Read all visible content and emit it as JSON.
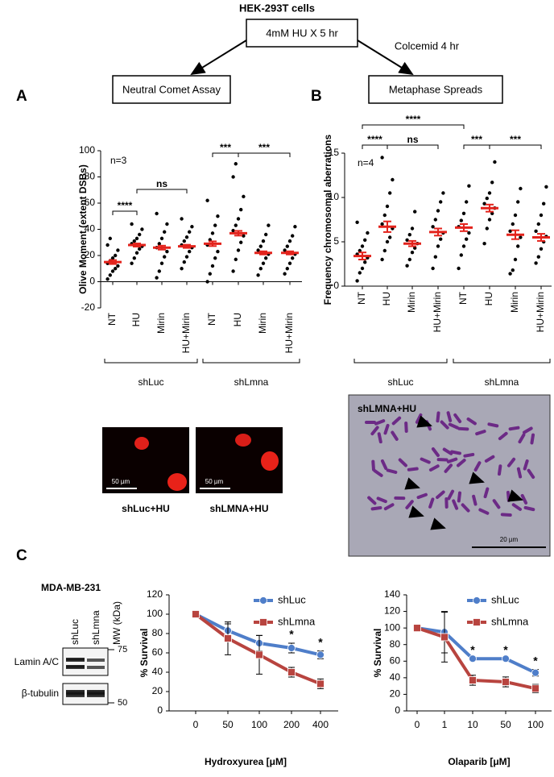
{
  "diagram": {
    "cells": "HEK-293T cells",
    "treatment": "4mM HU X 5 hr",
    "colcemid": "Colcemid 4 hr",
    "left_assay": "Neutral Comet Assay",
    "right_assay": "Metaphase Spreads"
  },
  "panel_labels": [
    "A",
    "B",
    "C"
  ],
  "comet": {
    "captions": [
      "shLuc+HU",
      "shLMNA+HU"
    ],
    "scale": "50 µm"
  },
  "metaphase": {
    "title": "shLMNA+HU",
    "scale": "20 µm"
  },
  "western": {
    "cell_line": "MDA-MB-231",
    "lanes": [
      "shLuc",
      "shLmna"
    ],
    "mw_label": "MW (kDa)",
    "proteins": [
      "Lamin A/C",
      "β-tubulin"
    ],
    "mw_markers": [
      "75",
      "50"
    ]
  },
  "chart_data": [
    {
      "type": "dotplot",
      "ylabel": "Olive Moment (extent DSBs)",
      "ylim": [
        -20,
        100
      ],
      "yticks": [
        -20,
        0,
        20,
        40,
        60,
        80,
        100
      ],
      "annotation": "n=3",
      "point_color": "#000000",
      "mean_color": "#e3231c",
      "groups": [
        {
          "name": "shLuc",
          "categories": [
            "NT",
            "HU",
            "Mirin",
            "HU+Mirin"
          ],
          "points": [
            [
              2,
              5,
              8,
              10,
              12,
              14,
              16,
              18,
              20,
              24,
              28,
              33
            ],
            [
              14,
              18,
              22,
              25,
              27,
              29,
              31,
              33,
              36,
              40,
              44
            ],
            [
              3,
              8,
              14,
              19,
              23,
              26,
              29,
              33,
              38,
              44,
              52
            ],
            [
              10,
              15,
              19,
              23,
              26,
              28,
              31,
              34,
              38,
              42,
              48
            ]
          ],
          "means": [
            15,
            28,
            26,
            27
          ],
          "errors": [
            1.5,
            1.2,
            1.5,
            1.2
          ]
        },
        {
          "name": "shLmna",
          "categories": [
            "NT",
            "HU",
            "Mirin",
            "HU+Mirin"
          ],
          "points": [
            [
              0,
              6,
              12,
              18,
              23,
              28,
              32,
              37,
              43,
              50,
              62
            ],
            [
              8,
              17,
              24,
              30,
              35,
              39,
              43,
              48,
              55,
              65,
              80,
              90
            ],
            [
              5,
              10,
              14,
              18,
              21,
              24,
              27,
              31,
              36,
              43
            ],
            [
              6,
              10,
              14,
              18,
              21,
              24,
              27,
              31,
              35,
              42
            ]
          ],
          "means": [
            29,
            37,
            22,
            22
          ],
          "errors": [
            1.8,
            1.8,
            1.2,
            1.2
          ]
        }
      ],
      "significance": [
        "****",
        "ns",
        "***",
        "***"
      ]
    },
    {
      "type": "dotplot",
      "ylabel": "Frequency chromosomal aberrations",
      "ylim": [
        0,
        15
      ],
      "yticks": [
        0,
        5,
        10,
        15
      ],
      "annotation": "n=4",
      "point_color": "#000000",
      "mean_color": "#e3231c",
      "groups": [
        {
          "name": "shLuc",
          "categories": [
            "NT",
            "HU",
            "Mirin",
            "HU+Mirin"
          ],
          "points": [
            [
              0.6,
              1.5,
              2,
              2.7,
              3.2,
              3.6,
              4,
              4.5,
              5.2,
              6,
              7.2
            ],
            [
              3,
              4,
              5,
              5.5,
              6.5,
              7,
              8,
              9,
              10.5,
              12,
              14.5
            ],
            [
              2.3,
              3,
              3.8,
              4.3,
              4.8,
              5.2,
              5.8,
              6.5,
              8.4
            ],
            [
              2,
              3.3,
              4.5,
              5.3,
              6,
              6.7,
              7.5,
              8.5,
              9.5,
              10.5
            ]
          ],
          "means": [
            3.4,
            6.7,
            4.8,
            6.1
          ],
          "errors": [
            0.4,
            0.6,
            0.3,
            0.4
          ]
        },
        {
          "name": "shLmna",
          "categories": [
            "NT",
            "HU",
            "Mirin",
            "HU+Mirin"
          ],
          "points": [
            [
              2,
              3.5,
              4.5,
              5.3,
              6,
              6.7,
              7.4,
              8.2,
              9.5,
              11.3
            ],
            [
              4.8,
              6.5,
              7.5,
              8.2,
              8.8,
              9.3,
              9.9,
              10.5,
              11.7,
              14
            ],
            [
              1.4,
              1.8,
              3,
              4.5,
              5.5,
              6.2,
              7,
              8,
              9.5,
              11
            ],
            [
              2.6,
              3.3,
              4.2,
              5,
              5.6,
              6.2,
              7,
              8,
              9.3,
              11.2
            ]
          ],
          "means": [
            6.6,
            8.8,
            5.8,
            5.5
          ],
          "errors": [
            0.4,
            0.4,
            0.5,
            0.4
          ]
        }
      ],
      "significance": [
        "****",
        "****",
        "ns",
        "***",
        "***"
      ]
    },
    {
      "type": "line",
      "xlabel": "Hydroxyurea [μM]",
      "ylabel": "% Survival",
      "categories": [
        "0",
        "50",
        "100",
        "200",
        "400"
      ],
      "ylim": [
        0,
        120
      ],
      "yticks": [
        0,
        20,
        40,
        60,
        80,
        100,
        120
      ],
      "series": [
        {
          "name": "shLuc",
          "color": "#4f7ec9",
          "marker": "circle",
          "values": [
            100,
            83,
            70,
            65,
            58
          ],
          "errors": [
            0,
            7,
            8,
            5,
            4
          ]
        },
        {
          "name": "shLmna",
          "color": "#b8443f",
          "marker": "square",
          "values": [
            100,
            75,
            58,
            40,
            28
          ],
          "errors": [
            0,
            17,
            20,
            5,
            5
          ]
        }
      ],
      "significance": [
        null,
        null,
        null,
        "*",
        "*"
      ]
    },
    {
      "type": "line",
      "xlabel": "Olaparib [μM]",
      "ylabel": "% Survival",
      "categories": [
        "0",
        "1",
        "10",
        "50",
        "100"
      ],
      "ylim": [
        0,
        140
      ],
      "yticks": [
        0,
        20,
        40,
        60,
        80,
        100,
        120,
        140
      ],
      "series": [
        {
          "name": "shLuc",
          "color": "#4f7ec9",
          "marker": "circle",
          "values": [
            100,
            95,
            63,
            63,
            46
          ],
          "errors": [
            0,
            25,
            0,
            0,
            4
          ]
        },
        {
          "name": "shLmna",
          "color": "#b8443f",
          "marker": "square",
          "values": [
            100,
            89,
            37,
            35,
            27
          ],
          "errors": [
            0,
            30,
            6,
            6,
            5
          ]
        }
      ],
      "significance": [
        null,
        null,
        "*",
        "*",
        "*"
      ]
    }
  ]
}
